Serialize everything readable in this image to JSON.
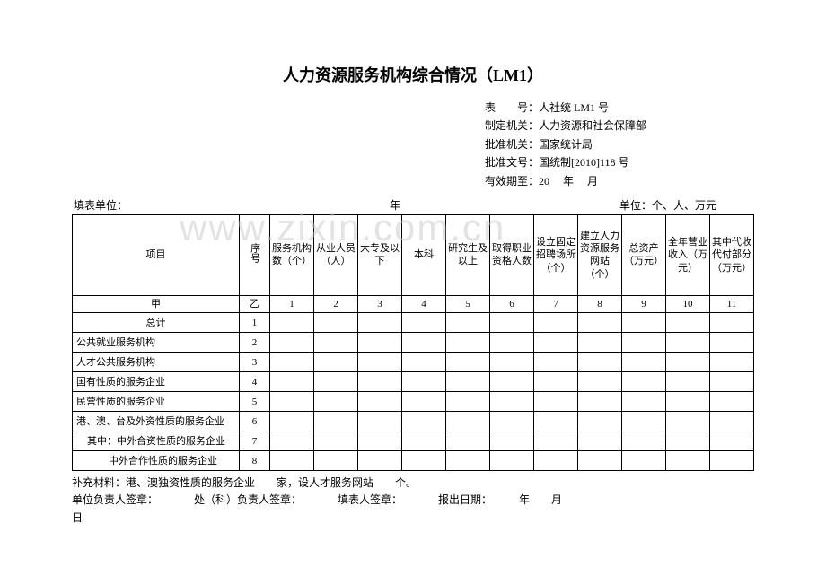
{
  "title": "人力资源服务机构综合情况（LM1）",
  "meta": {
    "line1": "表　　号：人社统 LM1 号",
    "line2": "制定机关：人力资源和社会保障部",
    "line3": "批准机关：国家统计局",
    "line4": "批准文号：国统制[2010]118 号",
    "line5": "有效期至：20　 年　 月"
  },
  "header": {
    "left": "填表单位：",
    "mid": "年",
    "right": "单位：个、人、万元"
  },
  "columns": {
    "c0": "项目",
    "c1": "序号",
    "c2": "服务机构数（个）",
    "c3": "从业人员（人）",
    "c4": "大专及以下",
    "c5": "本科",
    "c6": "研究生及以上",
    "c7": "取得职业资格人数",
    "c8": "设立固定招聘场所（个）",
    "c9": "建立人力资源服务网站（个）",
    "c10": "总资产（万元）",
    "c11": "全年营业收入（万元）",
    "c12": "其中代收代付部分（万元）"
  },
  "subheader": {
    "s0": "甲",
    "s1": "乙",
    "s2": "1",
    "s3": "2",
    "s4": "3",
    "s5": "4",
    "s6": "5",
    "s7": "6",
    "s8": "7",
    "s9": "8",
    "s10": "9",
    "s11": "10",
    "s12": "11"
  },
  "rows": [
    {
      "label": "总计",
      "seq": "1",
      "indent": "center"
    },
    {
      "label": "公共就业服务机构",
      "seq": "2",
      "indent": ""
    },
    {
      "label": "人才公共服务机构",
      "seq": "3",
      "indent": ""
    },
    {
      "label": "国有性质的服务企业",
      "seq": "4",
      "indent": ""
    },
    {
      "label": "民营性质的服务企业",
      "seq": "5",
      "indent": ""
    },
    {
      "label": "港、澳、台及外资性质的服务企业",
      "seq": "6",
      "indent": ""
    },
    {
      "label": "其中：中外合资性质的服务企业",
      "seq": "7",
      "indent": "indent1"
    },
    {
      "label": "中外合作性质的服务企业",
      "seq": "8",
      "indent": "indent2"
    }
  ],
  "footer": {
    "l1": "补充材料：港、澳独资性质的服务企业　　家，设人才服务网站　　个。",
    "l2a": "单位负责人签章：",
    "l2b": "处（科）负责人签章：",
    "l2c": "填表人签章：",
    "l2d": "报出日期：　　　年　　月",
    "l3": "日"
  },
  "watermark": "www.zixin.com.cn"
}
